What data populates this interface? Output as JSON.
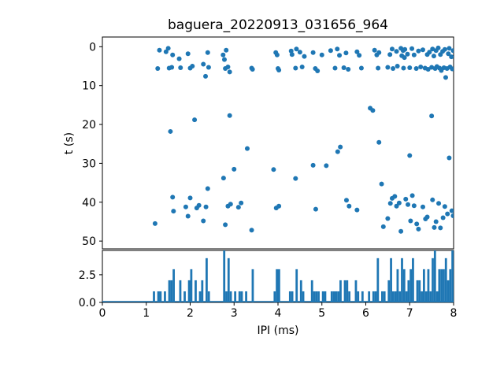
{
  "figure": {
    "title": "baguera_20220913_031656_964",
    "xlabel": "IPI (ms)",
    "ylabel": "t (s)"
  },
  "colors": {
    "marker": "#1f77b4",
    "bar": "#1f77b4",
    "axis": "#000000",
    "background": "#ffffff"
  },
  "chart_data": [
    {
      "type": "scatter",
      "title": "baguera_20220913_031656_964",
      "xlabel": "",
      "ylabel": "t (s)",
      "xlim": [
        0,
        8
      ],
      "ylim": [
        52,
        -2.5
      ],
      "y_inverted": true,
      "yticks": [
        0,
        10,
        20,
        30,
        40,
        50
      ],
      "marker_color": "#1f77b4",
      "points": [
        [
          1.26,
          5.6
        ],
        [
          1.3,
          0.9
        ],
        [
          1.45,
          1.3
        ],
        [
          1.5,
          0.4
        ],
        [
          1.52,
          5.5
        ],
        [
          1.58,
          5.3
        ],
        [
          1.6,
          2.1
        ],
        [
          1.75,
          3.1
        ],
        [
          1.78,
          5.4
        ],
        [
          1.95,
          1.8
        ],
        [
          2.0,
          5.5
        ],
        [
          2.05,
          5.0
        ],
        [
          2.3,
          4.5
        ],
        [
          2.35,
          7.6
        ],
        [
          2.4,
          1.5
        ],
        [
          2.42,
          5.3
        ],
        [
          2.75,
          2.1
        ],
        [
          2.78,
          3.3
        ],
        [
          2.8,
          5.6
        ],
        [
          2.82,
          0.9
        ],
        [
          2.86,
          5.2
        ],
        [
          2.9,
          6.5
        ],
        [
          3.4,
          5.5
        ],
        [
          3.42,
          5.8
        ],
        [
          3.95,
          1.5
        ],
        [
          3.98,
          2.1
        ],
        [
          4.0,
          5.6
        ],
        [
          4.02,
          6.0
        ],
        [
          4.3,
          1.1
        ],
        [
          4.32,
          2.0
        ],
        [
          4.4,
          5.5
        ],
        [
          4.42,
          0.6
        ],
        [
          4.5,
          1.4
        ],
        [
          4.55,
          5.2
        ],
        [
          4.6,
          2.5
        ],
        [
          4.8,
          1.5
        ],
        [
          4.85,
          5.6
        ],
        [
          4.9,
          6.2
        ],
        [
          5.0,
          2.1
        ],
        [
          5.2,
          1.0
        ],
        [
          5.3,
          5.5
        ],
        [
          5.35,
          0.6
        ],
        [
          5.4,
          2.2
        ],
        [
          5.5,
          5.4
        ],
        [
          5.55,
          1.6
        ],
        [
          5.6,
          5.8
        ],
        [
          5.8,
          1.3
        ],
        [
          5.85,
          2.2
        ],
        [
          5.9,
          5.5
        ],
        [
          6.2,
          0.9
        ],
        [
          6.25,
          2.1
        ],
        [
          6.28,
          5.5
        ],
        [
          6.3,
          1.5
        ],
        [
          6.5,
          5.3
        ],
        [
          6.55,
          2.0
        ],
        [
          6.6,
          0.6
        ],
        [
          6.62,
          5.6
        ],
        [
          6.7,
          1.2
        ],
        [
          6.72,
          5.0
        ],
        [
          6.8,
          0.4
        ],
        [
          6.82,
          2.3
        ],
        [
          6.85,
          1.0
        ],
        [
          6.86,
          5.5
        ],
        [
          6.88,
          2.8
        ],
        [
          6.89,
          0.7
        ],
        [
          6.95,
          1.9
        ],
        [
          7.0,
          5.4
        ],
        [
          7.05,
          0.5
        ],
        [
          7.1,
          2.1
        ],
        [
          7.15,
          5.6
        ],
        [
          7.2,
          1.1
        ],
        [
          7.25,
          5.2
        ],
        [
          7.3,
          0.8
        ],
        [
          7.35,
          5.5
        ],
        [
          7.4,
          2.0
        ],
        [
          7.42,
          5.8
        ],
        [
          7.45,
          1.4
        ],
        [
          7.5,
          5.3
        ],
        [
          7.52,
          0.6
        ],
        [
          7.55,
          2.4
        ],
        [
          7.58,
          5.6
        ],
        [
          7.6,
          1.0
        ],
        [
          7.62,
          5.1
        ],
        [
          7.65,
          0.3
        ],
        [
          7.68,
          5.5
        ],
        [
          7.7,
          2.0
        ],
        [
          7.72,
          6.1
        ],
        [
          7.75,
          1.2
        ],
        [
          7.78,
          5.4
        ],
        [
          7.8,
          0.7
        ],
        [
          7.82,
          7.9
        ],
        [
          7.85,
          5.6
        ],
        [
          7.88,
          1.8
        ],
        [
          7.9,
          0.4
        ],
        [
          7.92,
          5.2
        ],
        [
          7.95,
          2.6
        ],
        [
          7.97,
          5.7
        ],
        [
          7.99,
          1.0
        ],
        [
          1.2,
          45.5
        ],
        [
          1.55,
          21.8
        ],
        [
          1.6,
          38.7
        ],
        [
          1.62,
          42.3
        ],
        [
          1.9,
          41.2
        ],
        [
          1.95,
          43.6
        ],
        [
          2.0,
          38.9
        ],
        [
          2.1,
          18.8
        ],
        [
          2.15,
          41.5
        ],
        [
          2.2,
          40.8
        ],
        [
          2.3,
          44.8
        ],
        [
          2.36,
          41.2
        ],
        [
          2.4,
          36.5
        ],
        [
          2.76,
          33.8
        ],
        [
          2.8,
          45.8
        ],
        [
          2.86,
          41.0
        ],
        [
          2.92,
          40.5
        ],
        [
          2.9,
          17.7
        ],
        [
          3.0,
          31.5
        ],
        [
          3.1,
          41.3
        ],
        [
          3.16,
          40.2
        ],
        [
          3.3,
          26.2
        ],
        [
          3.4,
          47.2
        ],
        [
          3.9,
          31.6
        ],
        [
          3.96,
          41.5
        ],
        [
          4.02,
          41.0
        ],
        [
          4.4,
          33.9
        ],
        [
          4.8,
          30.5
        ],
        [
          4.86,
          41.8
        ],
        [
          5.1,
          30.6
        ],
        [
          5.36,
          27.0
        ],
        [
          5.42,
          25.8
        ],
        [
          5.56,
          39.5
        ],
        [
          5.62,
          41.0
        ],
        [
          5.8,
          42.0
        ],
        [
          6.1,
          15.8
        ],
        [
          6.16,
          16.4
        ],
        [
          6.3,
          24.6
        ],
        [
          6.36,
          35.3
        ],
        [
          6.4,
          46.3
        ],
        [
          6.5,
          44.2
        ],
        [
          6.56,
          40.3
        ],
        [
          6.6,
          39.0
        ],
        [
          6.66,
          38.5
        ],
        [
          6.7,
          41.0
        ],
        [
          6.76,
          40.2
        ],
        [
          6.8,
          47.5
        ],
        [
          6.91,
          39.2
        ],
        [
          6.96,
          40.6
        ],
        [
          7.0,
          28.0
        ],
        [
          7.02,
          44.8
        ],
        [
          7.06,
          38.3
        ],
        [
          7.1,
          40.9
        ],
        [
          7.16,
          45.6
        ],
        [
          7.2,
          46.9
        ],
        [
          7.3,
          41.2
        ],
        [
          7.36,
          44.3
        ],
        [
          7.4,
          43.8
        ],
        [
          7.5,
          17.8
        ],
        [
          7.52,
          39.4
        ],
        [
          7.56,
          46.5
        ],
        [
          7.6,
          45.0
        ],
        [
          7.66,
          40.3
        ],
        [
          7.7,
          46.6
        ],
        [
          7.76,
          44.0
        ],
        [
          7.8,
          41.1
        ],
        [
          7.86,
          43.0
        ],
        [
          7.9,
          28.6
        ],
        [
          7.96,
          42.2
        ],
        [
          7.99,
          43.5
        ]
      ]
    },
    {
      "type": "histogram",
      "xlabel": "IPI (ms)",
      "ylabel": "",
      "xlim": [
        0,
        8
      ],
      "ylim": [
        0,
        4.7
      ],
      "xticks": [
        0,
        1,
        2,
        3,
        4,
        5,
        6,
        7,
        8
      ],
      "ytick_labels": [
        "0.0",
        "2.5"
      ],
      "ytick_values": [
        0,
        2.5
      ],
      "bin_width": 0.05,
      "bar_color": "#1f77b4",
      "note": "counts of the scatter IPI (x) values per 0.05 ms bin"
    }
  ]
}
